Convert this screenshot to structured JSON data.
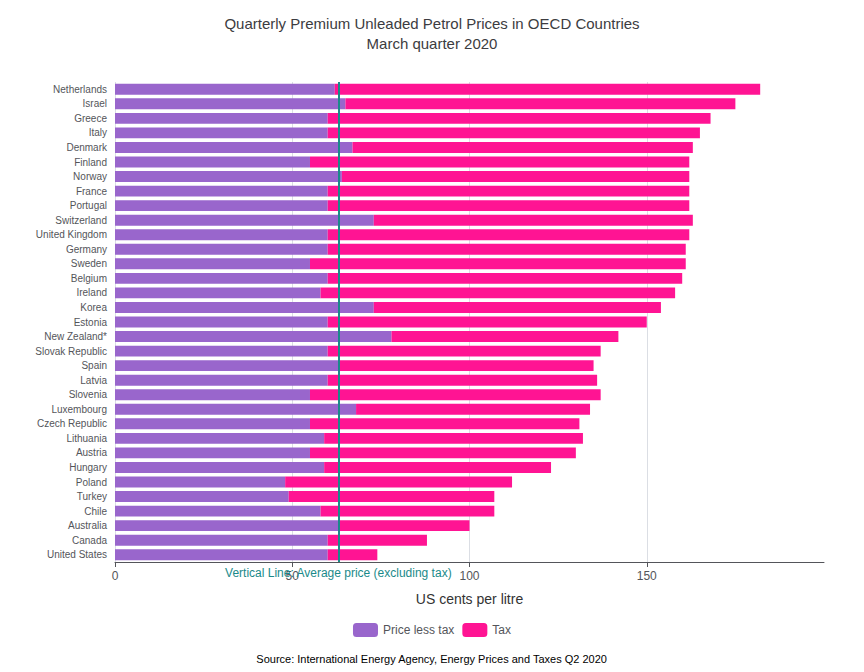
{
  "chart_data": {
    "type": "bar",
    "orientation": "horizontal",
    "stacked": true,
    "title": "Quarterly Premium Unleaded Petrol Prices in OECD Countries\nMarch quarter 2020",
    "xlabel": "US cents per litre",
    "source": "Source: International Energy Agency, Energy Prices and Taxes Q2 2020",
    "categories": [
      "Netherlands",
      "Israel",
      "Greece",
      "Italy",
      "Denmark",
      "Finland",
      "Norway",
      "France",
      "Portugal",
      "Switzerland",
      "United Kingdom",
      "Germany",
      "Sweden",
      "Belgium",
      "Ireland",
      "Korea",
      "Estonia",
      "New Zealand*",
      "Slovak Republic",
      "Spain",
      "Latvia",
      "Slovenia",
      "Luxembourg",
      "Czech Republic",
      "Lithuania",
      "Austria",
      "Hungary",
      "Poland",
      "Turkey",
      "Chile",
      "Australia",
      "Canada",
      "United States"
    ],
    "series": [
      {
        "name": "Price less tax",
        "color": "#9966CC",
        "values": [
          62,
          65,
          60,
          60,
          67,
          55,
          64,
          60,
          60,
          73,
          60,
          60,
          55,
          60,
          58,
          73,
          60,
          78,
          60,
          63,
          60,
          55,
          68,
          55,
          59,
          55,
          59,
          48,
          49,
          58,
          63,
          60,
          60
        ]
      },
      {
        "name": "Tax",
        "color": "#FF1493",
        "values": [
          120,
          110,
          108,
          105,
          96,
          107,
          98,
          102,
          102,
          90,
          102,
          101,
          106,
          100,
          100,
          81,
          90,
          64,
          77,
          72,
          76,
          82,
          66,
          76,
          73,
          75,
          64,
          64,
          58,
          49,
          37,
          28,
          14
        ]
      }
    ],
    "reference_line": {
      "value": 63,
      "label": "Vertical Line: Average price (excluding tax)",
      "color": "#1a8a8a"
    },
    "xlim": [
      0,
      200
    ],
    "xticks": [
      0,
      50,
      100,
      150
    ],
    "grid": true,
    "legend": "bottom"
  }
}
